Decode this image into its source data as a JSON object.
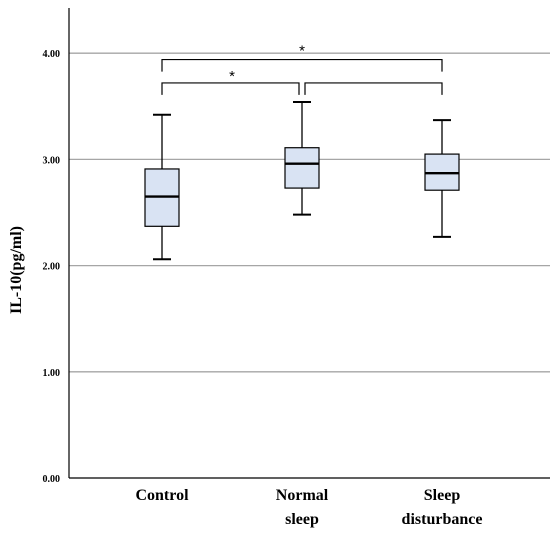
{
  "chart_data": {
    "type": "box",
    "ylabel": "IL-10(pg/ml)",
    "ylim": [
      0,
      4.4
    ],
    "yticks": [
      "0.00",
      "1.00",
      "2.00",
      "3.00",
      "4.00"
    ],
    "grid": true,
    "colors": {
      "box_fill": "#d9e3f3",
      "stroke": "#000000",
      "grid": "#a6a6a6"
    },
    "categories": [
      {
        "id": "control",
        "lines": [
          "Control"
        ]
      },
      {
        "id": "normal-sleep",
        "lines": [
          "Normal",
          "sleep"
        ]
      },
      {
        "id": "sleep-disturbance",
        "lines": [
          "Sleep",
          "disturbance"
        ]
      }
    ],
    "boxes": [
      {
        "min": 2.06,
        "q1": 2.37,
        "median": 2.65,
        "q3": 2.91,
        "max": 3.42
      },
      {
        "min": 2.48,
        "q1": 2.73,
        "median": 2.96,
        "q3": 3.11,
        "max": 3.54
      },
      {
        "min": 2.27,
        "q1": 2.71,
        "median": 2.87,
        "q3": 3.05,
        "max": 3.37
      }
    ],
    "significance": [
      {
        "from": 0,
        "to": 1,
        "label": "*",
        "y": 3.72
      },
      {
        "from": 0,
        "to": 2,
        "label": "*",
        "y": 3.94
      }
    ]
  }
}
